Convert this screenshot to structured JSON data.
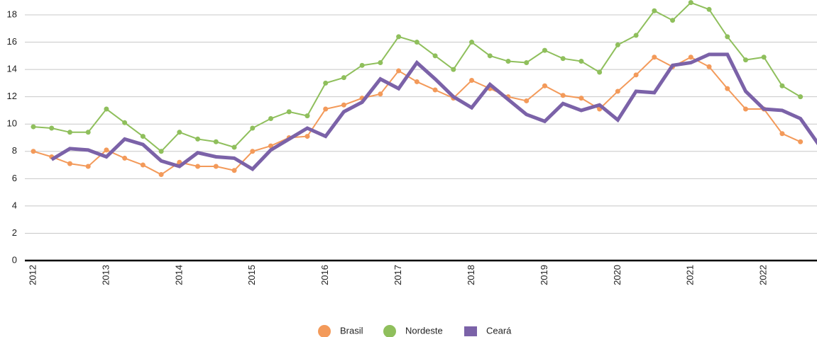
{
  "chart_data": {
    "type": "line",
    "categories": [
      "2012",
      null,
      null,
      null,
      "2013",
      null,
      null,
      null,
      "2014",
      null,
      null,
      null,
      "2015",
      null,
      null,
      null,
      "2016",
      null,
      null,
      null,
      "2017",
      null,
      null,
      null,
      "2018",
      null,
      null,
      null,
      "2019",
      null,
      null,
      null,
      "2020",
      null,
      null,
      null,
      "2021",
      null,
      null,
      null,
      "2022",
      null,
      null,
      null
    ],
    "series": [
      {
        "name": "Brasil",
        "color": "#f39a5a",
        "values": [
          8.0,
          7.6,
          7.1,
          6.9,
          8.1,
          7.5,
          7.0,
          6.3,
          7.2,
          6.9,
          6.9,
          6.6,
          8.0,
          8.4,
          9.0,
          9.1,
          11.1,
          11.4,
          11.9,
          12.2,
          13.9,
          13.1,
          12.5,
          11.9,
          13.2,
          12.6,
          12.0,
          11.7,
          12.8,
          12.1,
          11.9,
          11.1,
          12.4,
          13.6,
          14.9,
          14.2,
          14.9,
          14.2,
          12.6,
          11.1,
          11.1,
          9.3,
          8.7,
          null
        ]
      },
      {
        "name": "Nordeste",
        "color": "#8fbf5c",
        "values": [
          9.8,
          9.7,
          9.4,
          9.4,
          11.1,
          10.1,
          9.1,
          8.0,
          9.4,
          8.9,
          8.7,
          8.3,
          9.7,
          10.4,
          10.9,
          10.6,
          13.0,
          13.4,
          14.3,
          14.5,
          16.4,
          16.0,
          15.0,
          14.0,
          16.0,
          15.0,
          14.6,
          14.5,
          15.4,
          14.8,
          14.6,
          13.8,
          15.8,
          16.5,
          18.3,
          17.6,
          18.9,
          18.4,
          16.4,
          14.7,
          14.9,
          12.8,
          12.0,
          null
        ]
      },
      {
        "name": "Ceará",
        "color": "#7b62a8",
        "values": [
          null,
          7.4,
          8.2,
          8.1,
          7.6,
          8.9,
          8.5,
          7.3,
          6.9,
          7.9,
          7.6,
          7.5,
          6.7,
          8.1,
          8.9,
          9.7,
          9.1,
          10.9,
          11.6,
          13.3,
          12.6,
          14.5,
          13.3,
          12.0,
          11.2,
          12.9,
          11.8,
          10.7,
          10.2,
          11.5,
          11.0,
          11.4,
          10.3,
          12.4,
          12.3,
          14.3,
          14.5,
          15.1,
          15.1,
          12.4,
          11.1,
          11.0,
          10.4,
          8.5
        ]
      }
    ],
    "ylim": [
      0,
      18
    ],
    "yticks": [
      0,
      2,
      4,
      6,
      8,
      10,
      12,
      14,
      16,
      18
    ],
    "grid": true
  }
}
